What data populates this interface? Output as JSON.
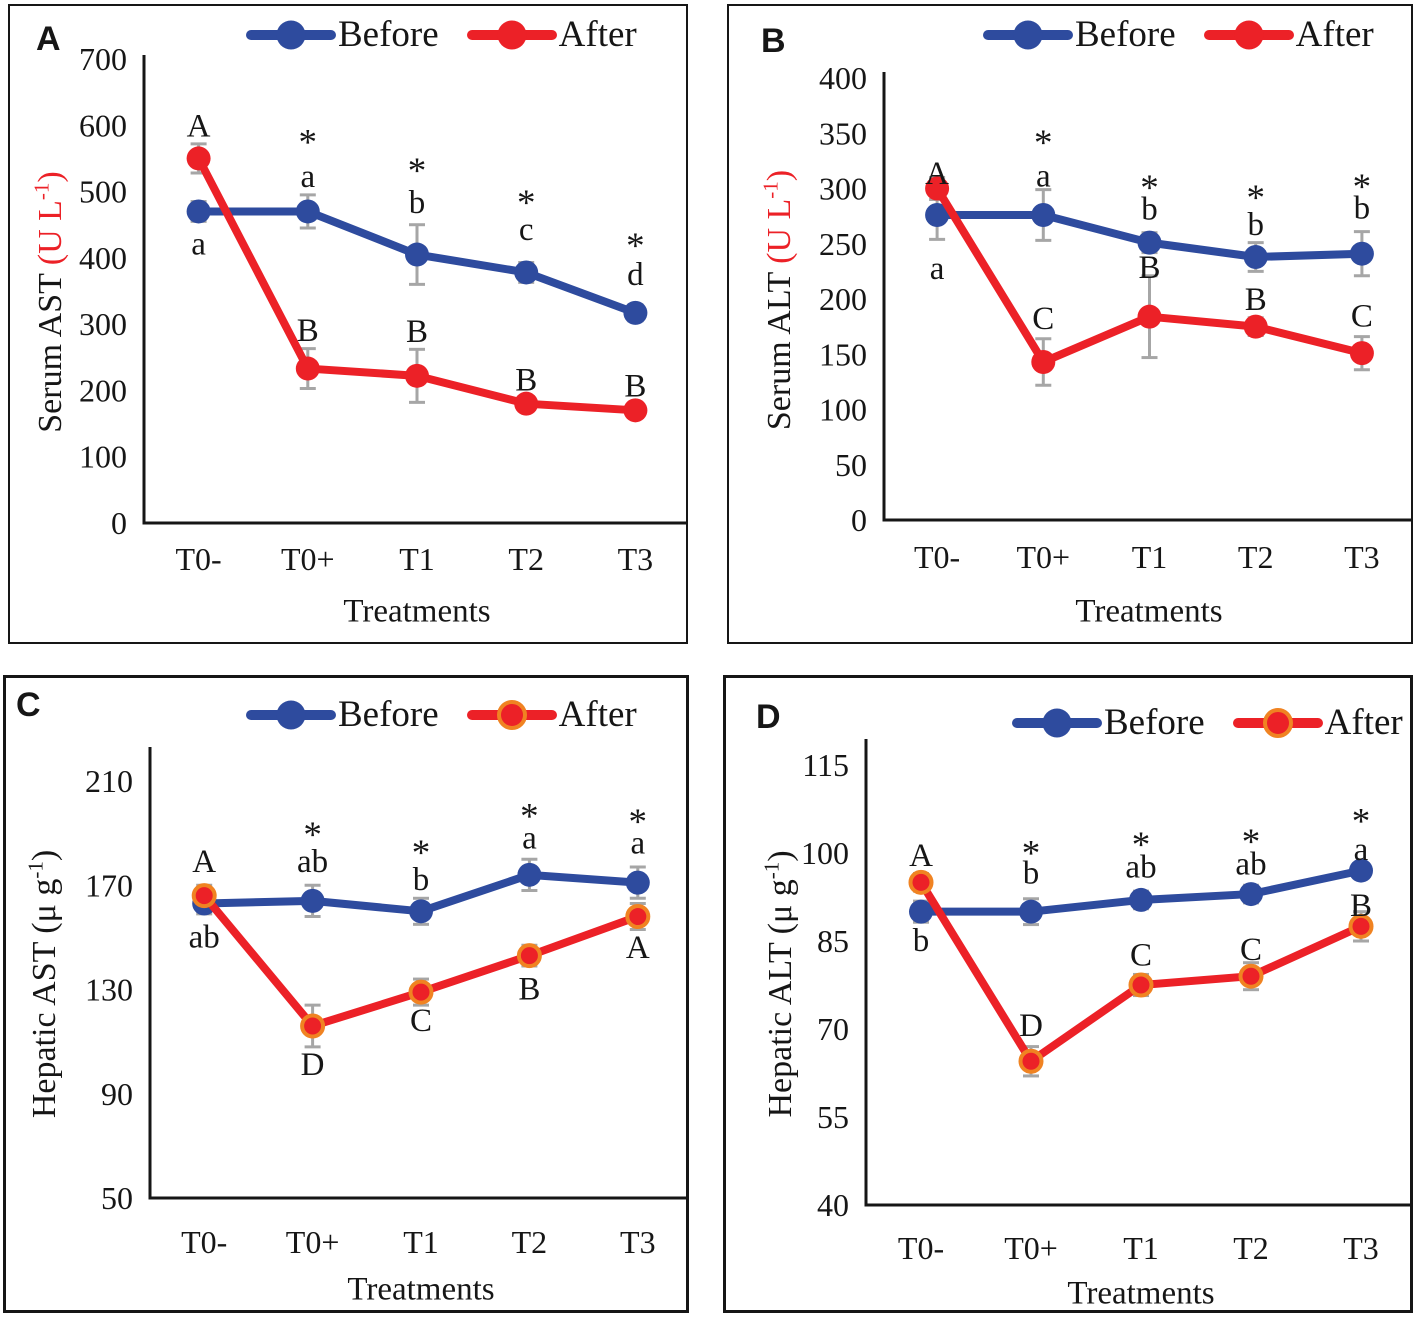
{
  "figure": {
    "background": "#ffffff",
    "border_color": "#161616",
    "axis_color": "#161616",
    "error_bar_color": "#a6a6a6"
  },
  "chart_data": [
    {
      "panel_label": "A",
      "type": "line",
      "xlabel": "Treatments",
      "ylabel": {
        "main": "Serum AST ",
        "unit_pre": "(U L",
        "unit_sup": "-1",
        "unit_post": ")",
        "unit_color": "#ec2127"
      },
      "ylim": [
        0,
        700
      ],
      "yticks": [
        0,
        100,
        200,
        300,
        400,
        500,
        600,
        700
      ],
      "categories": [
        "T0-",
        "T0+",
        "T1",
        "T2",
        "T3"
      ],
      "legend_position": "top",
      "grid": false,
      "series": [
        {
          "name": "Before",
          "color": "#2e4b9e",
          "marker_ring": null,
          "values": [
            470,
            470,
            405,
            378,
            317
          ],
          "errors": [
            15,
            25,
            45,
            15,
            12
          ]
        },
        {
          "name": "After",
          "color": "#ec2127",
          "marker_ring": null,
          "values": [
            550,
            233,
            222,
            180,
            170
          ],
          "errors": [
            22,
            30,
            40,
            10,
            10
          ]
        }
      ],
      "annotations": [
        {
          "cat": 0,
          "value": 598,
          "text": "A"
        },
        {
          "cat": 0,
          "value": 420,
          "text": "a"
        },
        {
          "cat": 1,
          "value": 588,
          "text": "*"
        },
        {
          "cat": 1,
          "value": 522,
          "text": "a"
        },
        {
          "cat": 1,
          "value": 290,
          "text": "B"
        },
        {
          "cat": 2,
          "value": 545,
          "text": "*"
        },
        {
          "cat": 2,
          "value": 483,
          "text": "b"
        },
        {
          "cat": 2,
          "value": 288,
          "text": "B"
        },
        {
          "cat": 3,
          "value": 497,
          "text": "*"
        },
        {
          "cat": 3,
          "value": 442,
          "text": "c"
        },
        {
          "cat": 3,
          "value": 215,
          "text": "B"
        },
        {
          "cat": 4,
          "value": 432,
          "text": "*"
        },
        {
          "cat": 4,
          "value": 374,
          "text": "d"
        },
        {
          "cat": 4,
          "value": 206,
          "text": "B"
        }
      ]
    },
    {
      "panel_label": "B",
      "type": "line",
      "xlabel": "Treatments",
      "ylabel": {
        "main": "Serum ALT ",
        "unit_pre": "(U L",
        "unit_sup": "-1",
        "unit_post": ")",
        "unit_color": "#ec2127"
      },
      "ylim": [
        0,
        400
      ],
      "yticks": [
        0,
        50,
        100,
        150,
        200,
        250,
        300,
        350,
        400
      ],
      "categories": [
        "T0-",
        "T0+",
        "T1",
        "T2",
        "T3"
      ],
      "legend_position": "top",
      "grid": false,
      "series": [
        {
          "name": "Before",
          "color": "#2e4b9e",
          "marker_ring": null,
          "values": [
            276,
            276,
            251,
            238,
            241
          ],
          "errors": [
            22,
            23,
            9,
            13,
            20
          ]
        },
        {
          "name": "After",
          "color": "#ec2127",
          "marker_ring": null,
          "values": [
            300,
            143,
            184,
            175,
            151
          ],
          "errors": [
            10,
            21,
            37,
            8,
            15
          ]
        }
      ],
      "annotations": [
        {
          "cat": 0,
          "value": 313,
          "text": "A"
        },
        {
          "cat": 0,
          "value": 227,
          "text": "a"
        },
        {
          "cat": 1,
          "value": 350,
          "text": "*"
        },
        {
          "cat": 1,
          "value": 311,
          "text": "a"
        },
        {
          "cat": 1,
          "value": 182,
          "text": "C"
        },
        {
          "cat": 2,
          "value": 309,
          "text": "*"
        },
        {
          "cat": 2,
          "value": 281,
          "text": "b"
        },
        {
          "cat": 2,
          "value": 228,
          "text": "B"
        },
        {
          "cat": 3,
          "value": 300,
          "text": "*"
        },
        {
          "cat": 3,
          "value": 267,
          "text": "b"
        },
        {
          "cat": 3,
          "value": 199,
          "text": "B"
        },
        {
          "cat": 4,
          "value": 310,
          "text": "*"
        },
        {
          "cat": 4,
          "value": 282,
          "text": "b"
        },
        {
          "cat": 4,
          "value": 184,
          "text": "C"
        }
      ]
    },
    {
      "panel_label": "C",
      "type": "line",
      "xlabel": "Treatments",
      "ylabel": {
        "main": "Hepatic AST ",
        "unit_pre": "(μ g",
        "unit_sup": "-1",
        "unit_post": ")",
        "unit_color": "#161616"
      },
      "ylim": [
        50,
        210
      ],
      "yticks": [
        50,
        90,
        130,
        170,
        210
      ],
      "categories": [
        "T0-",
        "T0+",
        "T1",
        "T2",
        "T3"
      ],
      "legend_position": "top",
      "grid": false,
      "series": [
        {
          "name": "Before",
          "color": "#2e4b9e",
          "marker_ring": null,
          "values": [
            163,
            164,
            160,
            174,
            171
          ],
          "errors": [
            4,
            6,
            5,
            6,
            6
          ]
        },
        {
          "name": "After",
          "color": "#ec2127",
          "marker_ring": "#f08322",
          "values": [
            166,
            116,
            129,
            143,
            158
          ],
          "errors": [
            4,
            8,
            5,
            4,
            5
          ]
        }
      ],
      "annotations": [
        {
          "cat": 0,
          "value": 179,
          "text": "A"
        },
        {
          "cat": 0,
          "value": 150,
          "text": "ab"
        },
        {
          "cat": 1,
          "value": 193,
          "text": "*"
        },
        {
          "cat": 1,
          "value": 179,
          "text": "ab"
        },
        {
          "cat": 1,
          "value": 101,
          "text": "D"
        },
        {
          "cat": 2,
          "value": 186,
          "text": "*"
        },
        {
          "cat": 2,
          "value": 172,
          "text": "b"
        },
        {
          "cat": 2,
          "value": 118,
          "text": "C"
        },
        {
          "cat": 3,
          "value": 200,
          "text": "*"
        },
        {
          "cat": 3,
          "value": 188,
          "text": "a"
        },
        {
          "cat": 3,
          "value": 130,
          "text": "B"
        },
        {
          "cat": 4,
          "value": 198,
          "text": "*"
        },
        {
          "cat": 4,
          "value": 186,
          "text": "a"
        },
        {
          "cat": 4,
          "value": 146,
          "text": "A"
        }
      ]
    },
    {
      "panel_label": "D",
      "type": "line",
      "xlabel": "Treatments",
      "ylabel": {
        "main": "Hepatic ALT ",
        "unit_pre": "(μ g",
        "unit_sup": "-1",
        "unit_post": ")",
        "unit_color": "#161616"
      },
      "ylim": [
        40,
        115
      ],
      "yticks": [
        40,
        55,
        70,
        85,
        100,
        115
      ],
      "categories": [
        "T0-",
        "T0+",
        "T1",
        "T2",
        "T3"
      ],
      "legend_position": "top",
      "grid": false,
      "series": [
        {
          "name": "Before",
          "color": "#2e4b9e",
          "marker_ring": null,
          "values": [
            90,
            90,
            92,
            93,
            97
          ],
          "errors": [
            1.8,
            2.2,
            1.5,
            1.5,
            1.2
          ]
        },
        {
          "name": "After",
          "color": "#ec2127",
          "marker_ring": "#f08322",
          "values": [
            95,
            64.5,
            77.5,
            79,
            87.5
          ],
          "errors": [
            1.5,
            2.5,
            1.8,
            2.3,
            2.5
          ]
        }
      ],
      "annotations": [
        {
          "cat": 0,
          "value": 99.5,
          "text": "A"
        },
        {
          "cat": 0,
          "value": 85,
          "text": "b"
        },
        {
          "cat": 1,
          "value": 101.5,
          "text": "*"
        },
        {
          "cat": 1,
          "value": 96.5,
          "text": "b"
        },
        {
          "cat": 1,
          "value": 70.5,
          "text": "D"
        },
        {
          "cat": 2,
          "value": 103,
          "text": "*"
        },
        {
          "cat": 2,
          "value": 97.5,
          "text": "ab"
        },
        {
          "cat": 2,
          "value": 82.5,
          "text": "C"
        },
        {
          "cat": 3,
          "value": 103.5,
          "text": "*"
        },
        {
          "cat": 3,
          "value": 98,
          "text": "ab"
        },
        {
          "cat": 3,
          "value": 83.5,
          "text": "C"
        },
        {
          "cat": 4,
          "value": 107,
          "text": "*"
        },
        {
          "cat": 4,
          "value": 100.5,
          "text": "a"
        },
        {
          "cat": 4,
          "value": 91,
          "text": "B"
        }
      ]
    }
  ]
}
